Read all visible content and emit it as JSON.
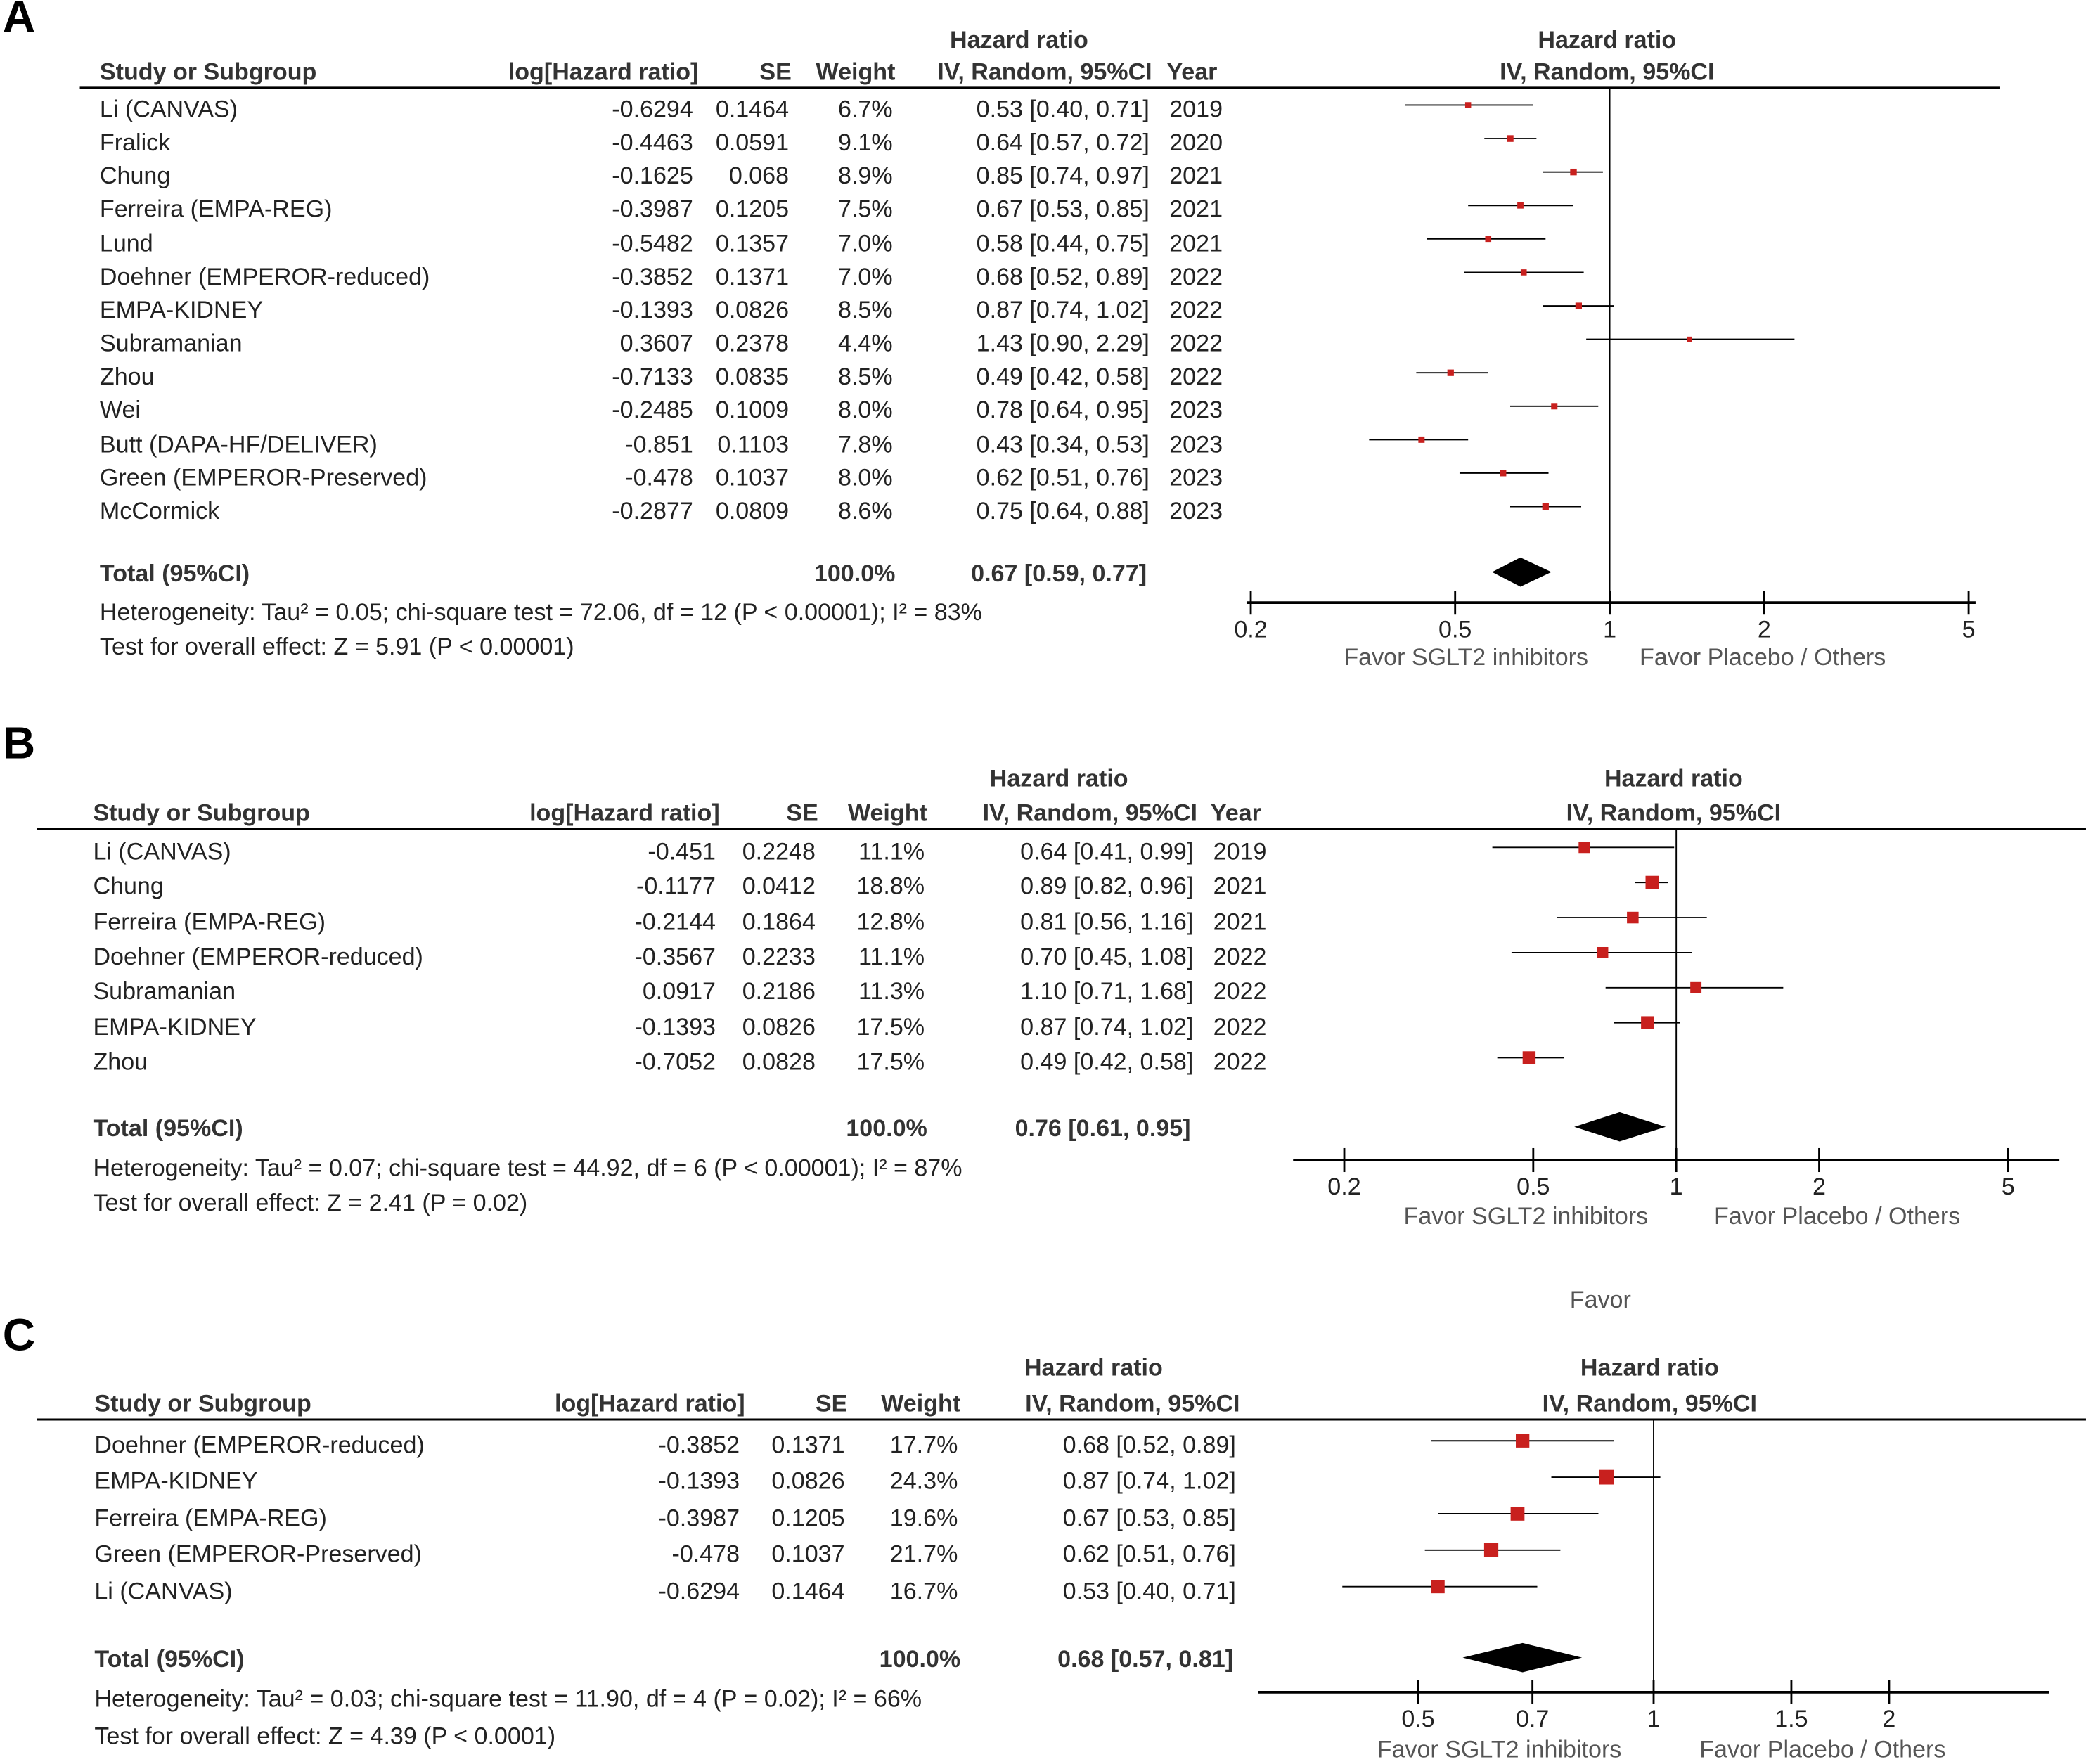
{
  "stray_label": "Favor",
  "panels": [
    {
      "label": "A",
      "headers": {
        "study": "Study or Subgroup",
        "loghr": "log[Hazard ratio]",
        "se": "SE",
        "weight": "Weight",
        "hr_group": "Hazard ratio",
        "hr_method": "IV, Random, 95%CI",
        "year": "Year",
        "plot_group": "Hazard ratio",
        "plot_method": "IV, Random, 95%CI"
      },
      "rows": [
        {
          "study": "Li (CANVAS)",
          "loghr": "-0.6294",
          "se": "0.1464",
          "weight": "6.7%",
          "ci": "0.53 [0.40, 0.71]",
          "year": "2019",
          "hr": 0.53,
          "lo": 0.4,
          "hi": 0.71,
          "w": 6.7
        },
        {
          "study": "Fralick",
          "loghr": "-0.4463",
          "se": "0.0591",
          "weight": "9.1%",
          "ci": "0.64 [0.57, 0.72]",
          "year": "2020",
          "hr": 0.64,
          "lo": 0.57,
          "hi": 0.72,
          "w": 9.1
        },
        {
          "study": "Chung",
          "loghr": "-0.1625",
          "se": "0.068",
          "weight": "8.9%",
          "ci": "0.85 [0.74, 0.97]",
          "year": "2021",
          "hr": 0.85,
          "lo": 0.74,
          "hi": 0.97,
          "w": 8.9
        },
        {
          "study": "Ferreira (EMPA-REG)",
          "loghr": "-0.3987",
          "se": "0.1205",
          "weight": "7.5%",
          "ci": "0.67 [0.53, 0.85]",
          "year": "2021",
          "hr": 0.67,
          "lo": 0.53,
          "hi": 0.85,
          "w": 7.5
        },
        {
          "study": "Lund",
          "loghr": "-0.5482",
          "se": "0.1357",
          "weight": "7.0%",
          "ci": "0.58 [0.44, 0.75]",
          "year": "2021",
          "hr": 0.58,
          "lo": 0.44,
          "hi": 0.75,
          "w": 7.0
        },
        {
          "study": "Doehner (EMPEROR-reduced)",
          "loghr": "-0.3852",
          "se": "0.1371",
          "weight": "7.0%",
          "ci": "0.68 [0.52, 0.89]",
          "year": "2022",
          "hr": 0.68,
          "lo": 0.52,
          "hi": 0.89,
          "w": 7.0
        },
        {
          "study": "EMPA-KIDNEY",
          "loghr": "-0.1393",
          "se": "0.0826",
          "weight": "8.5%",
          "ci": "0.87 [0.74, 1.02]",
          "year": "2022",
          "hr": 0.87,
          "lo": 0.74,
          "hi": 1.02,
          "w": 8.5
        },
        {
          "study": "Subramanian",
          "loghr": "0.3607",
          "se": "0.2378",
          "weight": "4.4%",
          "ci": "1.43 [0.90, 2.29]",
          "year": "2022",
          "hr": 1.43,
          "lo": 0.9,
          "hi": 2.29,
          "w": 4.4
        },
        {
          "study": "Zhou",
          "loghr": "-0.7133",
          "se": "0.0835",
          "weight": "8.5%",
          "ci": "0.49 [0.42, 0.58]",
          "year": "2022",
          "hr": 0.49,
          "lo": 0.42,
          "hi": 0.58,
          "w": 8.5
        },
        {
          "study": "Wei",
          "loghr": "-0.2485",
          "se": "0.1009",
          "weight": "8.0%",
          "ci": "0.78 [0.64, 0.95]",
          "year": "2023",
          "hr": 0.78,
          "lo": 0.64,
          "hi": 0.95,
          "w": 8.0
        },
        {
          "study": "Butt (DAPA-HF/DELIVER)",
          "loghr": "-0.851",
          "se": "0.1103",
          "weight": "7.8%",
          "ci": "0.43 [0.34, 0.53]",
          "year": "2023",
          "hr": 0.43,
          "lo": 0.34,
          "hi": 0.53,
          "w": 7.8
        },
        {
          "study": "Green (EMPEROR-Preserved)",
          "loghr": "-0.478",
          "se": "0.1037",
          "weight": "8.0%",
          "ci": "0.62 [0.51, 0.76]",
          "year": "2023",
          "hr": 0.62,
          "lo": 0.51,
          "hi": 0.76,
          "w": 8.0
        },
        {
          "study": "McCormick",
          "loghr": "-0.2877",
          "se": "0.0809",
          "weight": "8.6%",
          "ci": "0.75 [0.64, 0.88]",
          "year": "2023",
          "hr": 0.75,
          "lo": 0.64,
          "hi": 0.88,
          "w": 8.6
        }
      ],
      "total": {
        "label": "Total (95%CI)",
        "weight": "100.0%",
        "ci": "0.67 [0.59, 0.77]",
        "hr": 0.67,
        "lo": 0.59,
        "hi": 0.77
      },
      "heterogeneity": "Heterogeneity: Tau² = 0.05; chi-square test = 72.06, df = 12 (P < 0.00001); I² = 83%",
      "overall": "Test for overall effect: Z = 5.91 (P < 0.00001)",
      "axis": {
        "scale": "log",
        "ticks": [
          0.2,
          0.5,
          1,
          2,
          5
        ],
        "tick_labels": [
          "0.2",
          "0.5",
          "1",
          "2",
          "5"
        ],
        "left_label": "Favor SGLT2 inhibitors",
        "right_label": "Favor Placebo / Others"
      }
    },
    {
      "label": "B",
      "headers": {
        "study": "Study or Subgroup",
        "loghr": "log[Hazard ratio]",
        "se": "SE",
        "weight": "Weight",
        "hr_group": "Hazard ratio",
        "hr_method": "IV, Random, 95%CI",
        "year": "Year",
        "plot_group": "Hazard ratio",
        "plot_method": "IV, Random, 95%CI"
      },
      "rows": [
        {
          "study": "Li (CANVAS)",
          "loghr": "-0.451",
          "se": "0.2248",
          "weight": "11.1%",
          "ci": "0.64 [0.41, 0.99]",
          "year": "2019",
          "hr": 0.64,
          "lo": 0.41,
          "hi": 0.99,
          "w": 11.1
        },
        {
          "study": "Chung",
          "loghr": "-0.1177",
          "se": "0.0412",
          "weight": "18.8%",
          "ci": "0.89 [0.82, 0.96]",
          "year": "2021",
          "hr": 0.89,
          "lo": 0.82,
          "hi": 0.96,
          "w": 18.8
        },
        {
          "study": "Ferreira (EMPA-REG)",
          "loghr": "-0.2144",
          "se": "0.1864",
          "weight": "12.8%",
          "ci": "0.81 [0.56, 1.16]",
          "year": "2021",
          "hr": 0.81,
          "lo": 0.56,
          "hi": 1.16,
          "w": 12.8
        },
        {
          "study": "Doehner (EMPEROR-reduced)",
          "loghr": "-0.3567",
          "se": "0.2233",
          "weight": "11.1%",
          "ci": "0.70 [0.45, 1.08]",
          "year": "2022",
          "hr": 0.7,
          "lo": 0.45,
          "hi": 1.08,
          "w": 11.1
        },
        {
          "study": "Subramanian",
          "loghr": "0.0917",
          "se": "0.2186",
          "weight": "11.3%",
          "ci": "1.10 [0.71, 1.68]",
          "year": "2022",
          "hr": 1.1,
          "lo": 0.71,
          "hi": 1.68,
          "w": 11.3
        },
        {
          "study": "EMPA-KIDNEY",
          "loghr": "-0.1393",
          "se": "0.0826",
          "weight": "17.5%",
          "ci": "0.87 [0.74, 1.02]",
          "year": "2022",
          "hr": 0.87,
          "lo": 0.74,
          "hi": 1.02,
          "w": 17.5
        },
        {
          "study": "Zhou",
          "loghr": "-0.7052",
          "se": "0.0828",
          "weight": "17.5%",
          "ci": "0.49 [0.42, 0.58]",
          "year": "2022",
          "hr": 0.49,
          "lo": 0.42,
          "hi": 0.58,
          "w": 17.5
        }
      ],
      "total": {
        "label": "Total (95%CI)",
        "weight": "100.0%",
        "ci": "0.76 [0.61, 0.95]",
        "hr": 0.76,
        "lo": 0.61,
        "hi": 0.95
      },
      "heterogeneity": "Heterogeneity: Tau² = 0.07; chi-square test = 44.92, df = 6 (P < 0.00001); I² = 87%",
      "overall": "Test for overall effect: Z = 2.41 (P = 0.02)",
      "axis": {
        "scale": "log",
        "ticks": [
          0.2,
          0.5,
          1,
          2,
          5
        ],
        "tick_labels": [
          "0.2",
          "0.5",
          "1",
          "2",
          "5"
        ],
        "left_label": "Favor SGLT2 inhibitors",
        "right_label": "Favor Placebo / Others"
      }
    },
    {
      "label": "C",
      "headers": {
        "study": "Study or Subgroup",
        "loghr": "log[Hazard ratio]",
        "se": "SE",
        "weight": "Weight",
        "hr_group": "Hazard ratio",
        "hr_method": "IV, Random, 95%CI",
        "plot_group": "Hazard ratio",
        "plot_method": "IV, Random, 95%CI"
      },
      "rows": [
        {
          "study": "Doehner (EMPEROR-reduced)",
          "loghr": "-0.3852",
          "se": "0.1371",
          "weight": "17.7%",
          "ci": "0.68 [0.52, 0.89]",
          "hr": 0.68,
          "lo": 0.52,
          "hi": 0.89,
          "w": 17.7
        },
        {
          "study": "EMPA-KIDNEY",
          "loghr": "-0.1393",
          "se": "0.0826",
          "weight": "24.3%",
          "ci": "0.87 [0.74, 1.02]",
          "hr": 0.87,
          "lo": 0.74,
          "hi": 1.02,
          "w": 24.3
        },
        {
          "study": "Ferreira (EMPA-REG)",
          "loghr": "-0.3987",
          "se": "0.1205",
          "weight": "19.6%",
          "ci": "0.67 [0.53, 0.85]",
          "hr": 0.67,
          "lo": 0.53,
          "hi": 0.85,
          "w": 19.6
        },
        {
          "study": "Green (EMPEROR-Preserved)",
          "loghr": "-0.478",
          "se": "0.1037",
          "weight": "21.7%",
          "ci": "0.62 [0.51, 0.76]",
          "hr": 0.62,
          "lo": 0.51,
          "hi": 0.76,
          "w": 21.7
        },
        {
          "study": "Li (CANVAS)",
          "loghr": "-0.6294",
          "se": "0.1464",
          "weight": "16.7%",
          "ci": "0.53 [0.40, 0.71]",
          "hr": 0.53,
          "lo": 0.4,
          "hi": 0.71,
          "w": 16.7
        }
      ],
      "total": {
        "label": "Total (95%CI)",
        "weight": "100.0%",
        "ci": "0.68 [0.57, 0.81]",
        "hr": 0.68,
        "lo": 0.57,
        "hi": 0.81
      },
      "heterogeneity": "Heterogeneity: Tau² = 0.03; chi-square test = 11.90, df = 4 (P = 0.02); I² = 66%",
      "overall": "Test for overall effect: Z = 4.39 (P < 0.0001)",
      "axis": {
        "scale": "log",
        "ticks": [
          0.5,
          0.7,
          1,
          1.5,
          2
        ],
        "tick_labels": [
          "0.5",
          "0.7",
          "1",
          "1.5",
          "2"
        ],
        "left_label": "Favor SGLT2 inhibitors",
        "right_label": "Favor Placebo / Others"
      }
    }
  ],
  "colors": {
    "marker": "#c8201e",
    "line": "#000000",
    "text": "#222222"
  },
  "chart_data": {
    "type": "forest",
    "note": "Three forest plots (A, B, C) of hazard ratios; see panels for per-study values"
  }
}
